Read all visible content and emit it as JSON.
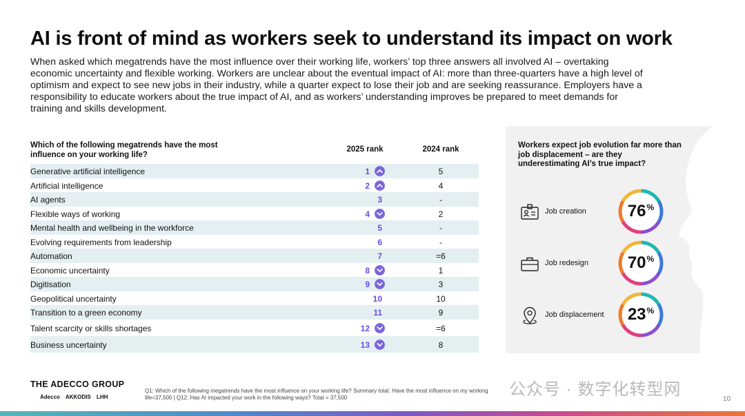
{
  "title": "AI is front of mind as workers seek to understand its impact on work",
  "intro": "When asked which megatrends have the most influence over their working life, workers’ top three answers all involved AI – overtaking economic uncertainty and flexible working. Workers are unclear about the eventual impact of AI: more than three-quarters have a high level of optimism and expect to see new jobs in their industry, while a quarter expect to lose their job and are seeking reassurance. Employers have a responsibility to educate workers about the true impact of AI, and as workers’ understanding improves be prepared to meet demands for training and skills development.",
  "table": {
    "question": "Which of the following megatrends have the most influence on your working life?",
    "col_2025": "2025 rank",
    "col_2024": "2024 rank",
    "rows": [
      {
        "label": "Generative artificial intelligence",
        "rank2025": "1",
        "rank2024": "5",
        "trend": "up"
      },
      {
        "label": "Artificial intelligence",
        "rank2025": "2",
        "rank2024": "4",
        "trend": "up"
      },
      {
        "label": "AI agents",
        "rank2025": "3",
        "rank2024": "-",
        "trend": "none"
      },
      {
        "label": "Flexible ways of working",
        "rank2025": "4",
        "rank2024": "2",
        "trend": "down"
      },
      {
        "label": "Mental health and wellbeing in the workforce",
        "rank2025": "5",
        "rank2024": "-",
        "trend": "none"
      },
      {
        "label": "Evolving requirements from leadership",
        "rank2025": "6",
        "rank2024": "-",
        "trend": "none"
      },
      {
        "label": "Automation",
        "rank2025": "7",
        "rank2024": "=6",
        "trend": "none"
      },
      {
        "label": "Economic uncertainty",
        "rank2025": "8",
        "rank2024": "1",
        "trend": "down"
      },
      {
        "label": "Digitisation",
        "rank2025": "9",
        "rank2024": "3",
        "trend": "down"
      },
      {
        "label": "Geopolitical uncertainty",
        "rank2025": "10",
        "rank2024": "10",
        "trend": "none"
      },
      {
        "label": "Transition to a green economy",
        "rank2025": "11",
        "rank2024": "9",
        "trend": "none"
      },
      {
        "label": "Talent scarcity or skills shortages",
        "rank2025": "12",
        "rank2024": "=6",
        "trend": "down"
      },
      {
        "label": "Business uncertainty",
        "rank2025": "13",
        "rank2024": "8",
        "trend": "down"
      }
    ]
  },
  "panel": {
    "heading": "Workers expect job evolution far more than job displacement – are they underestimating AI’s true impact?",
    "metrics": [
      {
        "label": "Job creation",
        "value": 76,
        "display": "76",
        "icon": "id-badge-icon"
      },
      {
        "label": "Job redesign",
        "value": 70,
        "display": "70",
        "icon": "briefcase-icon"
      },
      {
        "label": "Job displacement",
        "value": 23,
        "display": "23",
        "icon": "location-pin-icon"
      }
    ],
    "percent_sign": "%"
  },
  "footer": {
    "brand": "THE ADECCO GROUP",
    "brand_sub": "Adecco AKKODIS LHH",
    "note": "Q1: Which of the following megatrends have the most influence on your working life? Summary total: Have the most influence on my working life=37,500 | Q12: Has AI impacted your work in the following ways? Total = 37,500",
    "watermark": "公众号 · 数字化转型网",
    "page": "10"
  },
  "colors": {
    "rank2025": "#6b4fd8",
    "rank2024": "#3aa7a6",
    "row_alt": "#e4eff2",
    "arrow": "#7c65d8",
    "panel_bg": "#f1f1f1"
  }
}
